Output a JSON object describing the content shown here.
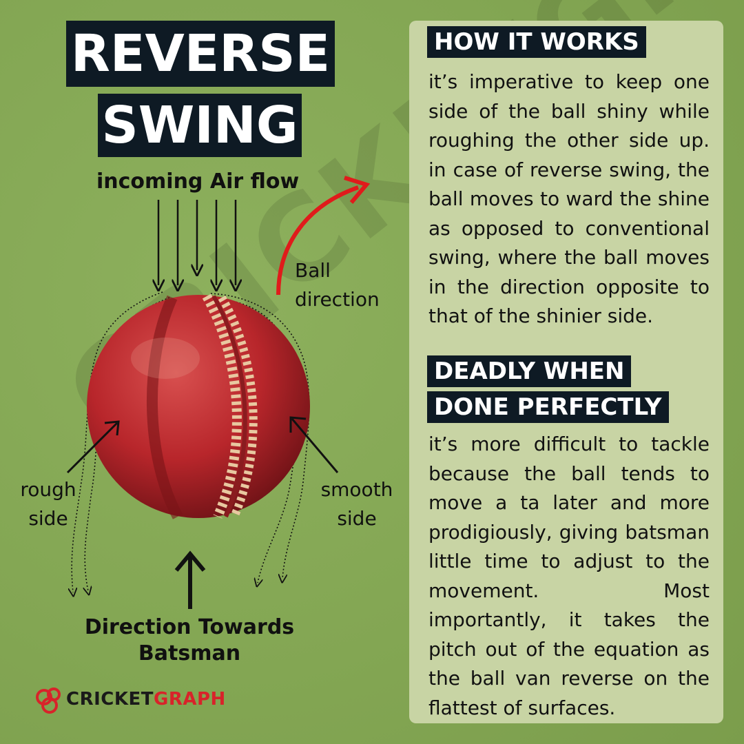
{
  "title": {
    "line1": "REVERSE",
    "line2": "SWING"
  },
  "diagram": {
    "airflow_label": "incoming Air flow",
    "ball_direction_label_1": "Ball",
    "ball_direction_label_2": "direction",
    "rough_side_label_1": "rough",
    "rough_side_label_2": "side",
    "smooth_side_label_1": "smooth",
    "smooth_side_label_2": "side",
    "towards_label_1": "Direction Towards",
    "towards_label_2": "Batsman"
  },
  "panel": {
    "section1_heading": "HOW IT WORKS",
    "section1_text": "it’s imperative to keep one side of the ball shiny while roughing the other side up. in case of reverse swing, the ball moves to ward the shine as opposed to conventional swing, where the ball moves in the direction opposite to that of the shinier side.",
    "section2_heading_line1": "DEADLY WHEN",
    "section2_heading_line2": "DONE PERFECTLY",
    "section2_text": "it’s more difficult to tackle because the ball tends to move a ta later and more prodigiously, giving batsman little time to adjust to the movement. Most importantly, it takes the pitch out of the equation as the ball van reverse on the flattest of surfaces."
  },
  "brand": {
    "logo_part1": "CRICKET",
    "logo_part2": "GRAPH",
    "watermark": "CRICKETGRAPH"
  },
  "colors": {
    "background": "#86a856",
    "panel": "#c8d4a4",
    "heading_bg": "#0e1a24",
    "ball": "#b8262b",
    "arrow_red": "#e01b1b",
    "brand_red": "#d8232a"
  }
}
